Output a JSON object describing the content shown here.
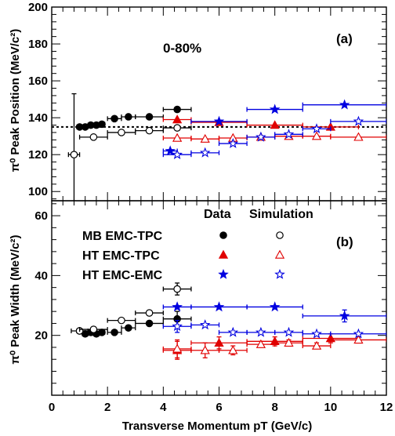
{
  "chart_data": [
    {
      "panel": "(a)",
      "type": "scatter",
      "annotation": "0-80%",
      "ylabel": "π⁰ Peak Position (MeV/c²)",
      "xlim": [
        0,
        12
      ],
      "ylim": [
        95,
        200
      ],
      "yticks": [
        100,
        120,
        140,
        160,
        180,
        200
      ],
      "reference_line": {
        "y": 135,
        "style": "dotted"
      },
      "series": [
        {
          "name": "MB EMC-TPC Data",
          "marker": "filled-circle",
          "color": "#000000",
          "x": [
            1.0,
            1.2,
            1.4,
            1.6,
            1.8,
            2.25,
            2.75,
            3.5,
            4.5
          ],
          "y": [
            135.0,
            135.0,
            136.0,
            136.0,
            136.5,
            139.5,
            140.5,
            140.5,
            144.5
          ],
          "xerr": [
            0.1,
            0.1,
            0.1,
            0.1,
            0.1,
            0.25,
            0.25,
            0.5,
            0.5
          ]
        },
        {
          "name": "MB EMC-TPC Simulation",
          "marker": "open-circle",
          "color": "#000000",
          "x": [
            0.8,
            1.5,
            2.5,
            3.5,
            4.5
          ],
          "y": [
            120.0,
            129.5,
            132.0,
            133.0,
            134.5
          ],
          "xerr": [
            0.2,
            0.5,
            0.5,
            0.5,
            0.5
          ],
          "yerr": [
            33.0,
            0,
            0,
            0,
            0
          ]
        },
        {
          "name": "HT EMC-TPC Data",
          "marker": "filled-triangle",
          "color": "#e00000",
          "x": [
            4.5,
            6.0,
            8.0,
            10.0
          ],
          "y": [
            139.0,
            137.5,
            136.0,
            135.0
          ],
          "xerr": [
            0.5,
            1.0,
            1.0,
            1.0
          ]
        },
        {
          "name": "HT EMC-TPC Simulation",
          "marker": "open-triangle",
          "color": "#e00000",
          "x": [
            4.5,
            5.5,
            6.5,
            7.5,
            8.5,
            9.5,
            11.0
          ],
          "y": [
            129.0,
            128.5,
            129.0,
            129.5,
            130.0,
            130.0,
            129.5
          ],
          "xerr": [
            0.5,
            0.5,
            0.5,
            0.5,
            0.5,
            0.5,
            1.0
          ]
        },
        {
          "name": "HT EMC-EMC Data",
          "marker": "filled-star",
          "color": "#0000e0",
          "x": [
            4.25,
            6.0,
            8.0,
            10.5
          ],
          "y": [
            122.0,
            138.0,
            144.5,
            147.0
          ],
          "xerr": [
            0.25,
            1.0,
            1.0,
            1.5
          ]
        },
        {
          "name": "HT EMC-EMC Simulation",
          "marker": "open-star",
          "color": "#0000e0",
          "x": [
            4.5,
            5.5,
            6.5,
            7.5,
            8.5,
            9.5,
            11.0
          ],
          "y": [
            120.0,
            121.0,
            126.0,
            129.5,
            131.0,
            134.0,
            138.0
          ],
          "xerr": [
            0.5,
            0.5,
            0.5,
            0.5,
            0.5,
            0.5,
            1.0
          ]
        }
      ]
    },
    {
      "panel": "(b)",
      "type": "scatter",
      "xlabel": "Transverse Momentum pT (GeV/c)",
      "ylabel": "π⁰ Peak Width (MeV/c²)",
      "xlim": [
        0,
        12
      ],
      "ylim": [
        0,
        65
      ],
      "xticks": [
        0,
        2,
        4,
        6,
        8,
        10,
        12
      ],
      "yticks": [
        20,
        40,
        60
      ],
      "legend": {
        "placement": "top-left",
        "headers": [
          "Data",
          "Simulation"
        ],
        "rows": [
          "MB EMC-TPC",
          "HT EMC-TPC",
          "HT EMC-EMC"
        ]
      },
      "series": [
        {
          "name": "MB EMC-TPC Data",
          "marker": "filled-circle",
          "color": "#000000",
          "x": [
            1.0,
            1.2,
            1.4,
            1.6,
            1.8,
            2.25,
            2.75,
            3.5,
            4.5
          ],
          "y": [
            21.5,
            20.5,
            21.0,
            20.5,
            21.0,
            21.0,
            22.5,
            24.0,
            25.5
          ],
          "xerr": [
            0.1,
            0.1,
            0.1,
            0.1,
            0.1,
            0.25,
            0.25,
            0.5,
            0.5
          ],
          "yerr": [
            0,
            0,
            0,
            0,
            0,
            0,
            0,
            0,
            2.5
          ]
        },
        {
          "name": "MB EMC-TPC Simulation",
          "marker": "open-circle",
          "color": "#000000",
          "x": [
            1.0,
            1.5,
            2.5,
            3.5,
            4.5
          ],
          "y": [
            21.5,
            22.0,
            25.0,
            27.5,
            35.5
          ],
          "xerr": [
            0.3,
            0.5,
            0.5,
            0.5,
            0.5
          ],
          "yerr": [
            0,
            0,
            0,
            0,
            2.0
          ]
        },
        {
          "name": "HT EMC-TPC Data",
          "marker": "filled-triangle",
          "color": "#e00000",
          "x": [
            4.5,
            6.0,
            8.0,
            10.0
          ],
          "y": [
            15.0,
            17.5,
            18.0,
            19.0
          ],
          "xerr": [
            0.5,
            1.0,
            1.0,
            1.0
          ],
          "yerr": [
            3.0,
            2.0,
            1.5,
            1.5
          ]
        },
        {
          "name": "HT EMC-TPC Simulation",
          "marker": "open-triangle",
          "color": "#e00000",
          "x": [
            4.5,
            5.5,
            6.5,
            7.5,
            8.5,
            9.5,
            11.0
          ],
          "y": [
            15.5,
            15.0,
            15.0,
            17.0,
            17.5,
            16.5,
            18.5
          ],
          "xerr": [
            0.5,
            0.5,
            0.5,
            0.5,
            0.5,
            0.5,
            1.0
          ],
          "yerr": [
            3.0,
            2.5,
            1.5,
            1.0,
            1.0,
            1.0,
            1.0
          ]
        },
        {
          "name": "HT EMC-EMC Data",
          "marker": "filled-star",
          "color": "#0000e0",
          "x": [
            4.5,
            6.0,
            8.0,
            10.5
          ],
          "y": [
            29.5,
            29.5,
            29.5,
            26.5
          ],
          "xerr": [
            0.5,
            1.0,
            1.0,
            1.5
          ],
          "yerr": [
            0,
            0,
            0,
            2.0
          ]
        },
        {
          "name": "HT EMC-EMC Simulation",
          "marker": "open-star",
          "color": "#0000e0",
          "x": [
            4.5,
            5.5,
            6.5,
            7.5,
            8.5,
            9.5,
            11.0
          ],
          "y": [
            23.0,
            23.5,
            21.0,
            21.0,
            21.0,
            20.5,
            20.5
          ],
          "xerr": [
            0.5,
            0.5,
            0.5,
            0.5,
            0.5,
            0.5,
            1.0
          ],
          "yerr": [
            2.0,
            0,
            0,
            0,
            0,
            0,
            0
          ]
        }
      ]
    }
  ]
}
